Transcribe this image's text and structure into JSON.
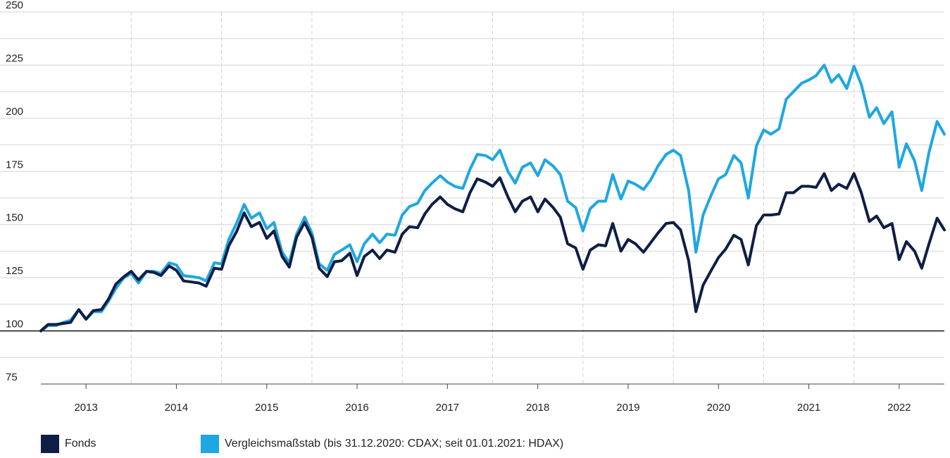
{
  "chart_data": {
    "type": "line",
    "ylim": [
      75,
      250
    ],
    "yticks": [
      75,
      100,
      125,
      150,
      175,
      200,
      225,
      250
    ],
    "xlim": [
      2012.5,
      2022.5
    ],
    "year_labels": [
      "2013",
      "2014",
      "2015",
      "2016",
      "2017",
      "2018",
      "2019",
      "2020",
      "2021",
      "2022"
    ],
    "year_label_positions": [
      2013.0,
      2014.0,
      2015.0,
      2016.0,
      2017.0,
      2018.0,
      2019.0,
      2020.0,
      2021.0,
      2022.0
    ],
    "year_separators": [
      2013.5,
      2014.5,
      2015.5,
      2016.5,
      2017.5,
      2018.5,
      2019.5,
      2020.5,
      2021.5
    ],
    "baseline": 100,
    "grid": true,
    "legend_position": "bottom-left",
    "series": [
      {
        "name": "Fonds",
        "color": "#0f1e45",
        "points": [
          [
            2012.5,
            100
          ],
          [
            2012.58,
            103
          ],
          [
            2012.67,
            103
          ],
          [
            2012.75,
            103.5
          ],
          [
            2012.83,
            104
          ],
          [
            2012.92,
            110
          ],
          [
            2013.0,
            105.5
          ],
          [
            2013.08,
            109.5
          ],
          [
            2013.17,
            110
          ],
          [
            2013.25,
            115
          ],
          [
            2013.33,
            122
          ],
          [
            2013.42,
            125.5
          ],
          [
            2013.5,
            128
          ],
          [
            2013.58,
            124
          ],
          [
            2013.67,
            128
          ],
          [
            2013.75,
            127.5
          ],
          [
            2013.83,
            126
          ],
          [
            2013.92,
            130.5
          ],
          [
            2014.0,
            128.5
          ],
          [
            2014.08,
            123.5
          ],
          [
            2014.17,
            123
          ],
          [
            2014.25,
            122.5
          ],
          [
            2014.33,
            121
          ],
          [
            2014.42,
            129.5
          ],
          [
            2014.5,
            129
          ],
          [
            2014.58,
            140
          ],
          [
            2014.67,
            147
          ],
          [
            2014.75,
            155.5
          ],
          [
            2014.83,
            149
          ],
          [
            2014.92,
            151
          ],
          [
            2015.0,
            143.5
          ],
          [
            2015.08,
            147
          ],
          [
            2015.17,
            135
          ],
          [
            2015.25,
            130
          ],
          [
            2015.33,
            144
          ],
          [
            2015.42,
            151
          ],
          [
            2015.5,
            144
          ],
          [
            2015.58,
            129.5
          ],
          [
            2015.67,
            125.5
          ],
          [
            2015.75,
            132.5
          ],
          [
            2015.83,
            133
          ],
          [
            2015.92,
            136.5
          ],
          [
            2016.0,
            126
          ],
          [
            2016.08,
            135
          ],
          [
            2016.17,
            138
          ],
          [
            2016.25,
            134
          ],
          [
            2016.33,
            138
          ],
          [
            2016.42,
            137
          ],
          [
            2016.5,
            145.5
          ],
          [
            2016.58,
            149
          ],
          [
            2016.67,
            148.5
          ],
          [
            2016.75,
            155
          ],
          [
            2016.83,
            159.5
          ],
          [
            2016.92,
            163
          ],
          [
            2017.0,
            159.5
          ],
          [
            2017.08,
            157.5
          ],
          [
            2017.17,
            156
          ],
          [
            2017.25,
            165
          ],
          [
            2017.33,
            171.5
          ],
          [
            2017.42,
            170
          ],
          [
            2017.5,
            168
          ],
          [
            2017.58,
            172
          ],
          [
            2017.67,
            163
          ],
          [
            2017.75,
            156
          ],
          [
            2017.83,
            161
          ],
          [
            2017.92,
            163
          ],
          [
            2018.0,
            156
          ],
          [
            2018.08,
            162
          ],
          [
            2018.17,
            158
          ],
          [
            2018.25,
            153.5
          ],
          [
            2018.33,
            141
          ],
          [
            2018.42,
            139
          ],
          [
            2018.5,
            129
          ],
          [
            2018.58,
            138
          ],
          [
            2018.67,
            140.5
          ],
          [
            2018.75,
            140
          ],
          [
            2018.83,
            150.5
          ],
          [
            2018.92,
            137.5
          ],
          [
            2019.0,
            143
          ],
          [
            2019.08,
            141
          ],
          [
            2019.17,
            137
          ],
          [
            2019.25,
            141.5
          ],
          [
            2019.33,
            146
          ],
          [
            2019.42,
            150.5
          ],
          [
            2019.5,
            151
          ],
          [
            2019.58,
            147.5
          ],
          [
            2019.67,
            133
          ],
          [
            2019.75,
            109
          ],
          [
            2019.83,
            121.5
          ],
          [
            2019.92,
            128.5
          ],
          [
            2020.0,
            134.5
          ],
          [
            2020.08,
            138.5
          ],
          [
            2020.17,
            145
          ],
          [
            2020.25,
            143
          ],
          [
            2020.33,
            131
          ],
          [
            2020.42,
            149.5
          ],
          [
            2020.5,
            154.5
          ],
          [
            2020.58,
            154.5
          ],
          [
            2020.67,
            155
          ],
          [
            2020.75,
            165
          ],
          [
            2020.83,
            165
          ],
          [
            2020.92,
            168
          ],
          [
            2021.0,
            168
          ],
          [
            2021.08,
            167.5
          ],
          [
            2021.17,
            174
          ],
          [
            2021.25,
            166
          ],
          [
            2021.33,
            169
          ],
          [
            2021.42,
            167
          ],
          [
            2021.5,
            174
          ],
          [
            2021.58,
            165
          ],
          [
            2021.67,
            151.5
          ],
          [
            2021.75,
            154
          ],
          [
            2021.83,
            148.5
          ],
          [
            2021.92,
            150.5
          ],
          [
            2022.0,
            133.5
          ],
          [
            2022.08,
            142
          ],
          [
            2022.17,
            137.5
          ],
          [
            2022.25,
            129.5
          ],
          [
            2022.33,
            141
          ],
          [
            2022.42,
            153
          ],
          [
            2022.5,
            147.5
          ]
        ]
      },
      {
        "name": "Vergleichsmaßstab (bis 31.12.2020: CDAX; seit 01.01.2021: HDAX)",
        "color": "#1ea7e1",
        "points": [
          [
            2012.5,
            100
          ],
          [
            2012.58,
            102.5
          ],
          [
            2012.67,
            102.5
          ],
          [
            2012.75,
            104
          ],
          [
            2012.83,
            105
          ],
          [
            2012.92,
            110
          ],
          [
            2013.0,
            105.5
          ],
          [
            2013.08,
            109
          ],
          [
            2013.17,
            109
          ],
          [
            2013.25,
            114
          ],
          [
            2013.33,
            120
          ],
          [
            2013.42,
            125
          ],
          [
            2013.5,
            127
          ],
          [
            2013.58,
            122.5
          ],
          [
            2013.67,
            128
          ],
          [
            2013.75,
            128
          ],
          [
            2013.83,
            127
          ],
          [
            2013.92,
            132
          ],
          [
            2014.0,
            131
          ],
          [
            2014.08,
            126
          ],
          [
            2014.17,
            125.5
          ],
          [
            2014.25,
            125
          ],
          [
            2014.33,
            123.5
          ],
          [
            2014.42,
            132
          ],
          [
            2014.5,
            131.5
          ],
          [
            2014.58,
            143
          ],
          [
            2014.67,
            151
          ],
          [
            2014.75,
            159.5
          ],
          [
            2014.83,
            153
          ],
          [
            2014.92,
            155.5
          ],
          [
            2015.0,
            148
          ],
          [
            2015.08,
            151
          ],
          [
            2015.17,
            137
          ],
          [
            2015.25,
            132
          ],
          [
            2015.33,
            145.5
          ],
          [
            2015.42,
            153.5
          ],
          [
            2015.5,
            146
          ],
          [
            2015.58,
            131.5
          ],
          [
            2015.67,
            128.5
          ],
          [
            2015.75,
            136
          ],
          [
            2015.83,
            138
          ],
          [
            2015.92,
            140.5
          ],
          [
            2016.0,
            132.5
          ],
          [
            2016.08,
            141
          ],
          [
            2016.17,
            145.5
          ],
          [
            2016.25,
            141.5
          ],
          [
            2016.33,
            145.5
          ],
          [
            2016.42,
            145
          ],
          [
            2016.5,
            154.5
          ],
          [
            2016.58,
            158.5
          ],
          [
            2016.67,
            160
          ],
          [
            2016.75,
            166
          ],
          [
            2016.83,
            169.5
          ],
          [
            2016.92,
            173
          ],
          [
            2017.0,
            170
          ],
          [
            2017.08,
            168
          ],
          [
            2017.17,
            167
          ],
          [
            2017.25,
            176
          ],
          [
            2017.33,
            183
          ],
          [
            2017.42,
            182.5
          ],
          [
            2017.5,
            180.5
          ],
          [
            2017.58,
            185
          ],
          [
            2017.67,
            175
          ],
          [
            2017.75,
            169.5
          ],
          [
            2017.83,
            177
          ],
          [
            2017.92,
            179
          ],
          [
            2018.0,
            173
          ],
          [
            2018.08,
            180.5
          ],
          [
            2018.17,
            177.5
          ],
          [
            2018.25,
            173.5
          ],
          [
            2018.33,
            161
          ],
          [
            2018.42,
            158
          ],
          [
            2018.5,
            147
          ],
          [
            2018.58,
            157.5
          ],
          [
            2018.67,
            161
          ],
          [
            2018.75,
            161
          ],
          [
            2018.83,
            173.5
          ],
          [
            2018.92,
            162
          ],
          [
            2019.0,
            170.5
          ],
          [
            2019.08,
            169
          ],
          [
            2019.17,
            166.5
          ],
          [
            2019.25,
            171
          ],
          [
            2019.33,
            177.5
          ],
          [
            2019.42,
            183
          ],
          [
            2019.5,
            185
          ],
          [
            2019.58,
            182.5
          ],
          [
            2019.67,
            166
          ],
          [
            2019.75,
            137
          ],
          [
            2019.83,
            154.5
          ],
          [
            2019.92,
            164
          ],
          [
            2020.0,
            171.5
          ],
          [
            2020.08,
            173.5
          ],
          [
            2020.17,
            182.5
          ],
          [
            2020.25,
            179
          ],
          [
            2020.33,
            162.5
          ],
          [
            2020.42,
            187
          ],
          [
            2020.5,
            194.5
          ],
          [
            2020.58,
            192.5
          ],
          [
            2020.67,
            195
          ],
          [
            2020.75,
            209
          ],
          [
            2020.83,
            212.5
          ],
          [
            2020.92,
            216.5
          ],
          [
            2021.0,
            218
          ],
          [
            2021.08,
            220
          ],
          [
            2021.17,
            225
          ],
          [
            2021.25,
            217
          ],
          [
            2021.33,
            220.5
          ],
          [
            2021.42,
            214
          ],
          [
            2021.5,
            224.5
          ],
          [
            2021.58,
            216
          ],
          [
            2021.67,
            200.5
          ],
          [
            2021.75,
            205
          ],
          [
            2021.83,
            197.5
          ],
          [
            2021.92,
            203
          ],
          [
            2022.0,
            177
          ],
          [
            2022.08,
            188
          ],
          [
            2022.17,
            180
          ],
          [
            2022.25,
            166
          ],
          [
            2022.33,
            184
          ],
          [
            2022.42,
            198.5
          ],
          [
            2022.5,
            192.5
          ]
        ]
      }
    ]
  }
}
